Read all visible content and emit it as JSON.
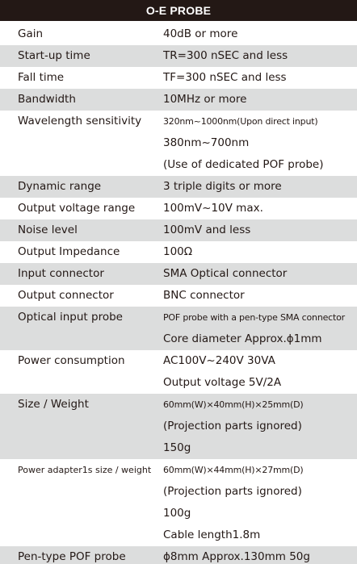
{
  "title": "O-E PROBE",
  "rows": [
    {
      "label": "Gain",
      "values": [
        "40dB or more"
      ],
      "shaded": false
    },
    {
      "label": "Start-up time",
      "values": [
        "TR=300 nSEC and less"
      ],
      "shaded": true
    },
    {
      "label": "Fall time",
      "values": [
        "TF=300 nSEC and less"
      ],
      "shaded": false
    },
    {
      "label": "Bandwidth",
      "values": [
        "10MHz or more"
      ],
      "shaded": true
    },
    {
      "label": "Wavelength sensitivity",
      "values": [
        "320nm~1000nm(Upon direct input)",
        "380nm~700nm",
        "(Use of dedicated POF probe)"
      ],
      "shaded": false,
      "small_first": true
    },
    {
      "label": "Dynamic range",
      "values": [
        "3 triple digits or more"
      ],
      "shaded": true
    },
    {
      "label": "Output voltage range",
      "values": [
        "100mV~10V max."
      ],
      "shaded": false
    },
    {
      "label": "Noise level",
      "values": [
        "100mV and less"
      ],
      "shaded": true
    },
    {
      "label": "Output Impedance",
      "values": [
        "100Ω"
      ],
      "shaded": false
    },
    {
      "label": "Input connector",
      "values": [
        "SMA Optical connector"
      ],
      "shaded": true
    },
    {
      "label": "Output connector",
      "values": [
        "BNC connector"
      ],
      "shaded": false
    },
    {
      "label": "Optical input probe",
      "values": [
        "POF probe with a pen-type SMA connector",
        "Core diameter Approx.ϕ1mm"
      ],
      "shaded": true,
      "small_first": true
    },
    {
      "label": "Power consumption",
      "values": [
        "AC100V~240V 30VA",
        "Output voltage 5V/2A"
      ],
      "shaded": false
    },
    {
      "label": "Size / Weight",
      "values": [
        "60mm(W)×40mm(H)×25mm(D)",
        "(Projection parts ignored)",
        "150g"
      ],
      "shaded": true,
      "small_first": true
    },
    {
      "label": "Power adapter1s size / weight",
      "values": [
        "60mm(W)×44mm(H)×27mm(D)",
        "(Projection parts ignored)",
        "100g",
        "Cable length1.8m"
      ],
      "shaded": false,
      "small_first": true,
      "small_label": true
    },
    {
      "label": "Pen-type POF probe",
      "values": [
        "ϕ8mm  Approx.130mm  50g"
      ],
      "shaded": true
    }
  ]
}
